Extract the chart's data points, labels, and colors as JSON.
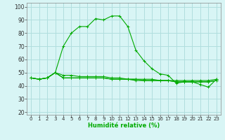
{
  "title": "",
  "xlabel": "Humidité relative (%)",
  "ylabel": "",
  "background_color": "#d8f5f5",
  "grid_color": "#b0dede",
  "line_color": "#00aa00",
  "xlim": [
    -0.5,
    23.5
  ],
  "ylim": [
    18,
    103
  ],
  "yticks": [
    20,
    30,
    40,
    50,
    60,
    70,
    80,
    90,
    100
  ],
  "xticks": [
    0,
    1,
    2,
    3,
    4,
    5,
    6,
    7,
    8,
    9,
    10,
    11,
    12,
    13,
    14,
    15,
    16,
    17,
    18,
    19,
    20,
    21,
    22,
    23
  ],
  "line1": [
    46,
    45,
    46,
    50,
    70,
    80,
    85,
    85,
    91,
    90,
    93,
    93,
    85,
    67,
    59,
    53,
    49,
    48,
    42,
    43,
    43,
    41,
    39,
    45
  ],
  "line2": [
    46,
    45,
    46,
    50,
    46,
    46,
    46,
    46,
    46,
    46,
    45,
    45,
    45,
    45,
    45,
    45,
    44,
    44,
    44,
    44,
    44,
    44,
    44,
    45
  ],
  "line3": [
    46,
    45,
    46,
    50,
    46,
    46,
    46,
    46,
    46,
    46,
    45,
    45,
    45,
    44,
    44,
    44,
    44,
    44,
    43,
    43,
    43,
    43,
    43,
    44
  ],
  "line4": [
    46,
    45,
    46,
    50,
    48,
    48,
    47,
    47,
    47,
    47,
    46,
    46,
    45,
    45,
    44,
    44,
    44,
    44,
    43,
    43,
    43,
    43,
    43,
    44
  ],
  "figsize": [
    3.2,
    2.0
  ],
  "dpi": 100
}
